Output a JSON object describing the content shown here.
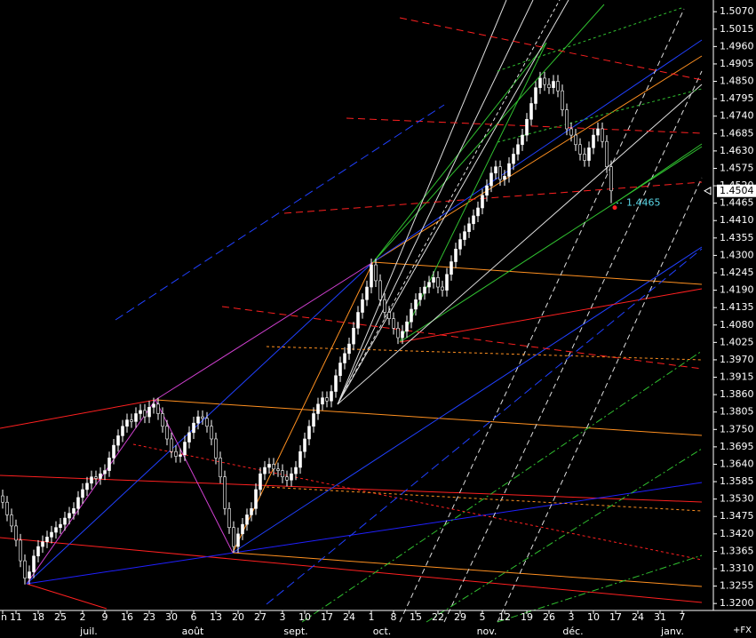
{
  "chart_data": {
    "type": "candlestick",
    "candles": [
      [
        1.354,
        1.356,
        1.35,
        1.352
      ],
      [
        1.352,
        1.354,
        1.346,
        1.348
      ],
      [
        1.348,
        1.35,
        1.3425,
        1.3445
      ],
      [
        1.3445,
        1.3465,
        1.338,
        1.34
      ],
      [
        1.34,
        1.342,
        1.3315,
        1.3335
      ],
      [
        1.3335,
        1.3355,
        1.326,
        1.328
      ],
      [
        1.328,
        1.332,
        1.326,
        1.33
      ],
      [
        1.33,
        1.337,
        1.328,
        1.335
      ],
      [
        1.335,
        1.34,
        1.333,
        1.338
      ],
      [
        1.338,
        1.3415,
        1.336,
        1.3395
      ],
      [
        1.3395,
        1.343,
        1.3375,
        1.341
      ],
      [
        1.341,
        1.3445,
        1.339,
        1.3425
      ],
      [
        1.3425,
        1.346,
        1.3405,
        1.344
      ],
      [
        1.344,
        1.347,
        1.342,
        1.345
      ],
      [
        1.345,
        1.349,
        1.343,
        1.347
      ],
      [
        1.347,
        1.3505,
        1.345,
        1.3485
      ],
      [
        1.3485,
        1.352,
        1.3465,
        1.35
      ],
      [
        1.35,
        1.3555,
        1.348,
        1.3535
      ],
      [
        1.3535,
        1.358,
        1.3515,
        1.356
      ],
      [
        1.356,
        1.36,
        1.354,
        1.358
      ],
      [
        1.358,
        1.362,
        1.356,
        1.36
      ],
      [
        1.36,
        1.362,
        1.3575,
        1.3595
      ],
      [
        1.3595,
        1.363,
        1.3575,
        1.361
      ],
      [
        1.361,
        1.364,
        1.359,
        1.362
      ],
      [
        1.362,
        1.368,
        1.36,
        1.366
      ],
      [
        1.366,
        1.372,
        1.364,
        1.37
      ],
      [
        1.37,
        1.375,
        1.368,
        1.373
      ],
      [
        1.373,
        1.378,
        1.371,
        1.376
      ],
      [
        1.376,
        1.38,
        1.374,
        1.378
      ],
      [
        1.378,
        1.38,
        1.3755,
        1.3775
      ],
      [
        1.3775,
        1.382,
        1.3755,
        1.38
      ],
      [
        1.38,
        1.383,
        1.378,
        1.381
      ],
      [
        1.381,
        1.383,
        1.377,
        1.379
      ],
      [
        1.379,
        1.384,
        1.377,
        1.382
      ],
      [
        1.382,
        1.385,
        1.38,
        1.383
      ],
      [
        1.383,
        1.385,
        1.378,
        1.38
      ],
      [
        1.38,
        1.382,
        1.374,
        1.376
      ],
      [
        1.376,
        1.378,
        1.37,
        1.372
      ],
      [
        1.372,
        1.374,
        1.366,
        1.368
      ],
      [
        1.368,
        1.37,
        1.3645,
        1.3665
      ],
      [
        1.3665,
        1.369,
        1.3645,
        1.367
      ],
      [
        1.367,
        1.373,
        1.365,
        1.371
      ],
      [
        1.371,
        1.376,
        1.369,
        1.374
      ],
      [
        1.374,
        1.379,
        1.372,
        1.377
      ],
      [
        1.377,
        1.381,
        1.375,
        1.379
      ],
      [
        1.379,
        1.381,
        1.3765,
        1.3785
      ],
      [
        1.3785,
        1.3805,
        1.374,
        1.376
      ],
      [
        1.376,
        1.378,
        1.37,
        1.372
      ],
      [
        1.372,
        1.374,
        1.364,
        1.366
      ],
      [
        1.366,
        1.368,
        1.358,
        1.36
      ],
      [
        1.36,
        1.362,
        1.348,
        1.35
      ],
      [
        1.35,
        1.352,
        1.342,
        1.344
      ],
      [
        1.344,
        1.346,
        1.336,
        1.338
      ],
      [
        1.338,
        1.344,
        1.336,
        1.342
      ],
      [
        1.342,
        1.347,
        1.34,
        1.345
      ],
      [
        1.345,
        1.35,
        1.343,
        1.348
      ],
      [
        1.348,
        1.352,
        1.346,
        1.35
      ],
      [
        1.35,
        1.358,
        1.348,
        1.356
      ],
      [
        1.356,
        1.363,
        1.354,
        1.361
      ],
      [
        1.361,
        1.365,
        1.359,
        1.363
      ],
      [
        1.363,
        1.366,
        1.361,
        1.364
      ],
      [
        1.364,
        1.366,
        1.3605,
        1.3625
      ],
      [
        1.3625,
        1.3645,
        1.36,
        1.362
      ],
      [
        1.362,
        1.364,
        1.358,
        1.36
      ],
      [
        1.36,
        1.362,
        1.357,
        1.359
      ],
      [
        1.359,
        1.363,
        1.357,
        1.361
      ],
      [
        1.361,
        1.365,
        1.359,
        1.363
      ],
      [
        1.363,
        1.37,
        1.361,
        1.368
      ],
      [
        1.368,
        1.374,
        1.366,
        1.372
      ],
      [
        1.372,
        1.378,
        1.37,
        1.376
      ],
      [
        1.376,
        1.382,
        1.374,
        1.38
      ],
      [
        1.38,
        1.385,
        1.378,
        1.383
      ],
      [
        1.383,
        1.387,
        1.381,
        1.385
      ],
      [
        1.385,
        1.387,
        1.382,
        1.384
      ],
      [
        1.384,
        1.389,
        1.382,
        1.387
      ],
      [
        1.387,
        1.394,
        1.385,
        1.392
      ],
      [
        1.392,
        1.398,
        1.39,
        1.396
      ],
      [
        1.396,
        1.401,
        1.394,
        1.399
      ],
      [
        1.399,
        1.404,
        1.397,
        1.402
      ],
      [
        1.402,
        1.409,
        1.4,
        1.407
      ],
      [
        1.407,
        1.414,
        1.405,
        1.412
      ],
      [
        1.412,
        1.418,
        1.41,
        1.416
      ],
      [
        1.416,
        1.422,
        1.414,
        1.42
      ],
      [
        1.42,
        1.429,
        1.418,
        1.427
      ],
      [
        1.427,
        1.429,
        1.42,
        1.422
      ],
      [
        1.422,
        1.424,
        1.414,
        1.416
      ],
      [
        1.416,
        1.418,
        1.41,
        1.412
      ],
      [
        1.412,
        1.414,
        1.408,
        1.41
      ],
      [
        1.41,
        1.412,
        1.405,
        1.407
      ],
      [
        1.407,
        1.409,
        1.402,
        1.404
      ],
      [
        1.404,
        1.408,
        1.402,
        1.406
      ],
      [
        1.406,
        1.411,
        1.404,
        1.409
      ],
      [
        1.409,
        1.415,
        1.407,
        1.413
      ],
      [
        1.413,
        1.418,
        1.411,
        1.416
      ],
      [
        1.416,
        1.42,
        1.414,
        1.418
      ],
      [
        1.418,
        1.422,
        1.416,
        1.42
      ],
      [
        1.42,
        1.4235,
        1.418,
        1.4215
      ],
      [
        1.4215,
        1.425,
        1.4195,
        1.423
      ],
      [
        1.423,
        1.425,
        1.418,
        1.42
      ],
      [
        1.42,
        1.422,
        1.417,
        1.419
      ],
      [
        1.419,
        1.426,
        1.417,
        1.424
      ],
      [
        1.424,
        1.43,
        1.422,
        1.428
      ],
      [
        1.428,
        1.434,
        1.426,
        1.432
      ],
      [
        1.432,
        1.437,
        1.43,
        1.435
      ],
      [
        1.435,
        1.4395,
        1.433,
        1.4375
      ],
      [
        1.4375,
        1.442,
        1.4355,
        1.44
      ],
      [
        1.44,
        1.4445,
        1.438,
        1.4425
      ],
      [
        1.4425,
        1.447,
        1.4405,
        1.445
      ],
      [
        1.445,
        1.451,
        1.443,
        1.449
      ],
      [
        1.449,
        1.454,
        1.447,
        1.452
      ],
      [
        1.452,
        1.458,
        1.45,
        1.456
      ],
      [
        1.456,
        1.46,
        1.454,
        1.458
      ],
      [
        1.458,
        1.46,
        1.452,
        1.454
      ],
      [
        1.454,
        1.457,
        1.452,
        1.455
      ],
      [
        1.455,
        1.461,
        1.453,
        1.459
      ],
      [
        1.459,
        1.464,
        1.457,
        1.462
      ],
      [
        1.462,
        1.467,
        1.46,
        1.465
      ],
      [
        1.465,
        1.47,
        1.463,
        1.468
      ],
      [
        1.468,
        1.475,
        1.466,
        1.473
      ],
      [
        1.473,
        1.48,
        1.471,
        1.478
      ],
      [
        1.478,
        1.485,
        1.476,
        1.483
      ],
      [
        1.483,
        1.488,
        1.481,
        1.486
      ],
      [
        1.486,
        1.488,
        1.482,
        1.484
      ],
      [
        1.484,
        1.486,
        1.481,
        1.483
      ],
      [
        1.483,
        1.487,
        1.481,
        1.485
      ],
      [
        1.485,
        1.487,
        1.48,
        1.482
      ],
      [
        1.482,
        1.484,
        1.474,
        1.476
      ],
      [
        1.476,
        1.478,
        1.468,
        1.47
      ],
      [
        1.47,
        1.472,
        1.466,
        1.468
      ],
      [
        1.468,
        1.47,
        1.463,
        1.465
      ],
      [
        1.465,
        1.467,
        1.46,
        1.462
      ],
      [
        1.462,
        1.464,
        1.458,
        1.46
      ],
      [
        1.46,
        1.466,
        1.458,
        1.464
      ],
      [
        1.464,
        1.47,
        1.462,
        1.468
      ],
      [
        1.468,
        1.472,
        1.466,
        1.47
      ],
      [
        1.47,
        1.472,
        1.464,
        1.466
      ],
      [
        1.466,
        1.468,
        1.456,
        1.458
      ],
      [
        1.458,
        1.46,
        1.4465,
        1.4504
      ]
    ],
    "up_color": "#ffffff",
    "down_color": "#000000",
    "xlim": [
      -0.6,
      160
    ],
    "xticks": [
      {
        "value": 0,
        "label": "in"
      },
      {
        "value": 3,
        "label": "11"
      },
      {
        "value": 8,
        "label": "18"
      },
      {
        "value": 13,
        "label": "25"
      },
      {
        "value": 18,
        "label": "2"
      },
      {
        "value": 23,
        "label": "9"
      },
      {
        "value": 28,
        "label": "16"
      },
      {
        "value": 33,
        "label": "23"
      },
      {
        "value": 38,
        "label": "30"
      },
      {
        "value": 43,
        "label": "6"
      },
      {
        "value": 48,
        "label": "13"
      },
      {
        "value": 53,
        "label": "20"
      },
      {
        "value": 58,
        "label": "27"
      },
      {
        "value": 63,
        "label": "3"
      },
      {
        "value": 68,
        "label": "10"
      },
      {
        "value": 73,
        "label": "17"
      },
      {
        "value": 78,
        "label": "24"
      },
      {
        "value": 83,
        "label": "1"
      },
      {
        "value": 88,
        "label": "8"
      },
      {
        "value": 93,
        "label": "15"
      },
      {
        "value": 98,
        "label": "22"
      },
      {
        "value": 103,
        "label": "29"
      },
      {
        "value": 108,
        "label": "5"
      },
      {
        "value": 113,
        "label": "12"
      },
      {
        "value": 118,
        "label": "19"
      },
      {
        "value": 123,
        "label": "26"
      },
      {
        "value": 128,
        "label": "3"
      },
      {
        "value": 133,
        "label": "10"
      },
      {
        "value": 138,
        "label": "17"
      },
      {
        "value": 143,
        "label": "24"
      },
      {
        "value": 148,
        "label": "31"
      },
      {
        "value": 153,
        "label": "7"
      }
    ],
    "month_labels": [
      {
        "value": 19.4,
        "label": "juil."
      },
      {
        "value": 42.8,
        "label": "août"
      },
      {
        "value": 66,
        "label": "sept."
      },
      {
        "value": 85.4,
        "label": "oct."
      },
      {
        "value": 109,
        "label": "nov."
      },
      {
        "value": 128.4,
        "label": "déc."
      },
      {
        "value": 150.8,
        "label": "janv."
      }
    ],
    "ylim": [
      1.3178,
      1.5107
    ],
    "yticks": [
      {
        "value": 1.32,
        "label": "1.3200"
      },
      1.3255,
      {
        "value": 1.331,
        "label": "1.3310"
      },
      1.3365,
      {
        "value": 1.342,
        "label": "1.3420"
      },
      1.3475,
      {
        "value": 1.353,
        "label": "1.3530"
      },
      1.3585,
      {
        "value": 1.364,
        "label": "1.3640"
      },
      1.3695,
      {
        "value": 1.375,
        "label": "1.3750"
      },
      1.3805,
      {
        "value": 1.386,
        "label": "1.3860"
      },
      1.3915,
      {
        "value": 1.397,
        "label": "1.3970"
      },
      1.4025,
      {
        "value": 1.408,
        "label": "1.4080"
      },
      1.4135,
      {
        "value": 1.419,
        "label": "1.4190"
      },
      1.4245,
      {
        "value": 1.43,
        "label": "1.4300"
      },
      1.4355,
      {
        "value": 1.441,
        "label": "1.4410"
      },
      1.4465,
      {
        "value": 1.452,
        "label": "1.4520"
      },
      1.4575,
      {
        "value": 1.463,
        "label": "1.4630"
      },
      1.4685,
      {
        "value": 1.474,
        "label": "1.4740"
      },
      1.4795,
      {
        "value": 1.485,
        "label": "1.4850"
      },
      1.4905,
      {
        "value": 1.496,
        "label": "1.4960"
      },
      1.5015,
      {
        "value": 1.507,
        "label": "1.5070"
      }
    ],
    "last_price": 1.4504,
    "marker_price": 1.4465,
    "corner_label": "+FX"
  }
}
